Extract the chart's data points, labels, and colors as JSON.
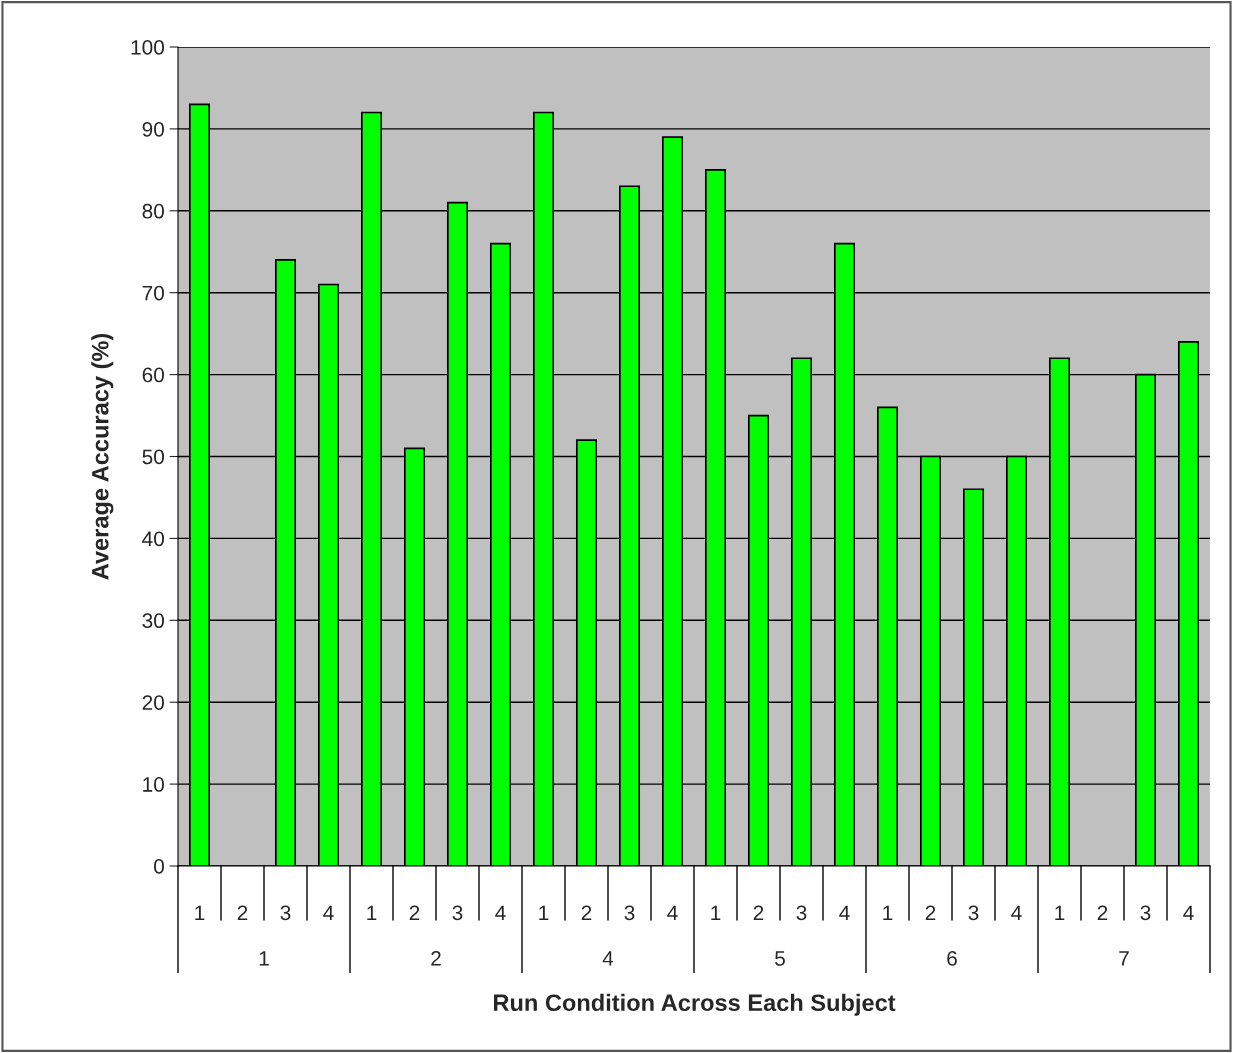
{
  "chart_data": {
    "type": "bar",
    "xlabel": "Run Condition Across Each Subject",
    "ylabel": "Average Accuracy (%)",
    "categories": [
      "1",
      "2",
      "3",
      "4",
      "1",
      "2",
      "3",
      "4",
      "1",
      "2",
      "3",
      "4",
      "1",
      "2",
      "3",
      "4",
      "1",
      "2",
      "3",
      "4",
      "1",
      "2",
      "3",
      "4"
    ],
    "values": [
      93,
      null,
      74,
      71,
      92,
      51,
      81,
      76,
      92,
      52,
      83,
      89,
      85,
      55,
      62,
      76,
      56,
      50,
      46,
      50,
      62,
      null,
      60,
      64
    ],
    "color": "#00ff00",
    "annotations": [
      "1",
      "2",
      "4",
      "5",
      "6",
      "7"
    ],
    "ylim": [
      0,
      100
    ],
    "yticks": [
      0,
      10,
      20,
      30,
      40,
      50,
      60,
      70,
      80,
      90,
      100
    ],
    "grid": "y",
    "legend": false
  }
}
